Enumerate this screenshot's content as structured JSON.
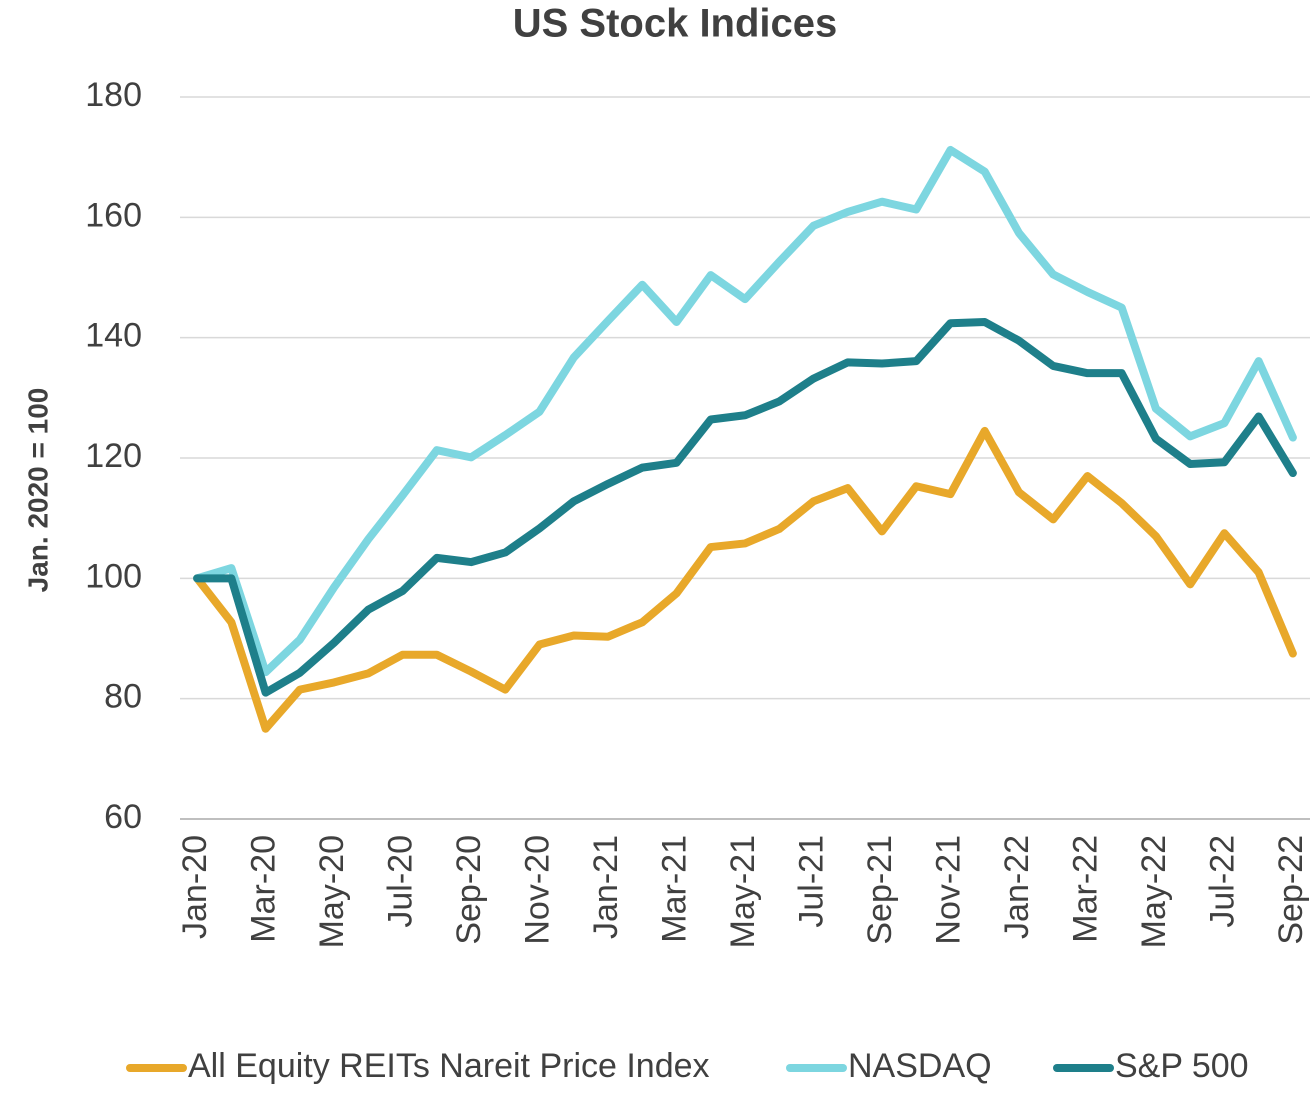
{
  "chart_data": {
    "type": "line",
    "title": "US Stock Indices",
    "y_label": "Jan. 2020 = 100",
    "categories": [
      "Jan-20",
      null,
      "Mar-20",
      null,
      "May-20",
      null,
      "Jul-20",
      null,
      "Sep-20",
      null,
      "Nov-20",
      null,
      "Jan-21",
      null,
      "Mar-21",
      null,
      "May-21",
      null,
      "Jul-21",
      null,
      "Sep-21",
      null,
      "Nov-21",
      null,
      "Jan-22",
      null,
      "Mar-22",
      null,
      "May-22",
      null,
      "Jul-22",
      null,
      "Sep-22"
    ],
    "series": [
      {
        "name": "All Equity REITs Nareit Price Index",
        "color": "#e8a82a",
        "values": [
          100,
          92.7,
          75,
          81.5,
          82.7,
          84.2,
          87.3,
          87.3,
          84.5,
          81.5,
          89,
          90.5,
          90.3,
          92.7,
          97.5,
          105.2,
          105.8,
          108.2,
          112.8,
          115,
          107.8,
          115.3,
          114,
          124.5,
          114.3,
          109.8,
          117,
          112.5,
          107,
          99,
          107.5,
          101,
          87.5
        ]
      },
      {
        "name": "NASDAQ",
        "color": "#7dd6e0",
        "values": [
          100,
          101.7,
          84.4,
          89.8,
          98.5,
          106.5,
          113.8,
          121.3,
          120.1,
          123.8,
          127.7,
          136.7,
          142.8,
          148.8,
          142.6,
          150.4,
          146.4,
          152.6,
          158.6,
          160.9,
          162.6,
          161.3,
          171.2,
          167.6,
          157.4,
          150.5,
          147.6,
          145,
          128.2,
          123.6,
          125.8,
          136.1,
          123.4
        ]
      },
      {
        "name": "S&P 500",
        "color": "#1e7f8a",
        "values": [
          100,
          100,
          81,
          84.3,
          89.3,
          94.8,
          97.9,
          103.4,
          102.7,
          104.3,
          108.3,
          112.8,
          115.7,
          118.4,
          119.2,
          126.4,
          127.1,
          129.4,
          133.2,
          135.9,
          135.7,
          136.1,
          142.4,
          142.6,
          139.5,
          135.3,
          134.1,
          134.1,
          123.2,
          119,
          119.3,
          126.9,
          117.5
        ]
      }
    ],
    "ylim": [
      60,
      180
    ],
    "yticks": [
      60,
      80,
      100,
      120,
      140,
      160,
      180
    ],
    "grid": true,
    "legend": "bottom"
  }
}
